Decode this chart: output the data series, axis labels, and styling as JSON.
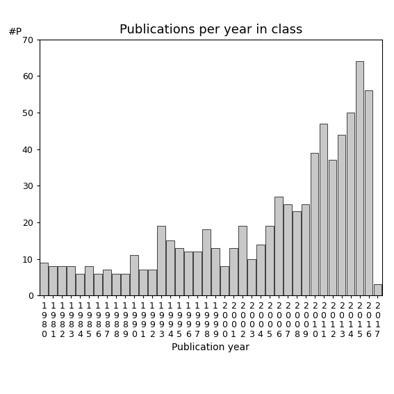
{
  "title": "Publications per year in class",
  "ylabel": "#P",
  "xlabel": "Publication year",
  "years": [
    1980,
    1981,
    1982,
    1983,
    1984,
    1985,
    1986,
    1987,
    1988,
    1989,
    1990,
    1991,
    1992,
    1993,
    1994,
    1995,
    1996,
    1997,
    1998,
    1999,
    2000,
    2001,
    2002,
    2003,
    2004,
    2005,
    2006,
    2007,
    2008,
    2009,
    2010,
    2011,
    2012,
    2013,
    2014,
    2015,
    2016,
    2017
  ],
  "values": [
    9,
    8,
    8,
    8,
    6,
    8,
    6,
    7,
    6,
    6,
    11,
    7,
    7,
    19,
    15,
    13,
    12,
    12,
    18,
    13,
    8,
    13,
    19,
    10,
    14,
    19,
    27,
    25,
    23,
    25,
    39,
    47,
    37,
    44,
    50,
    64,
    56,
    3
  ],
  "bar_color": "#c8c8c8",
  "bar_edge_color": "#000000",
  "ylim": [
    0,
    70
  ],
  "yticks": [
    0,
    10,
    20,
    30,
    40,
    50,
    60,
    70
  ],
  "background_color": "#ffffff",
  "title_fontsize": 13,
  "label_fontsize": 10,
  "tick_fontsize": 9
}
